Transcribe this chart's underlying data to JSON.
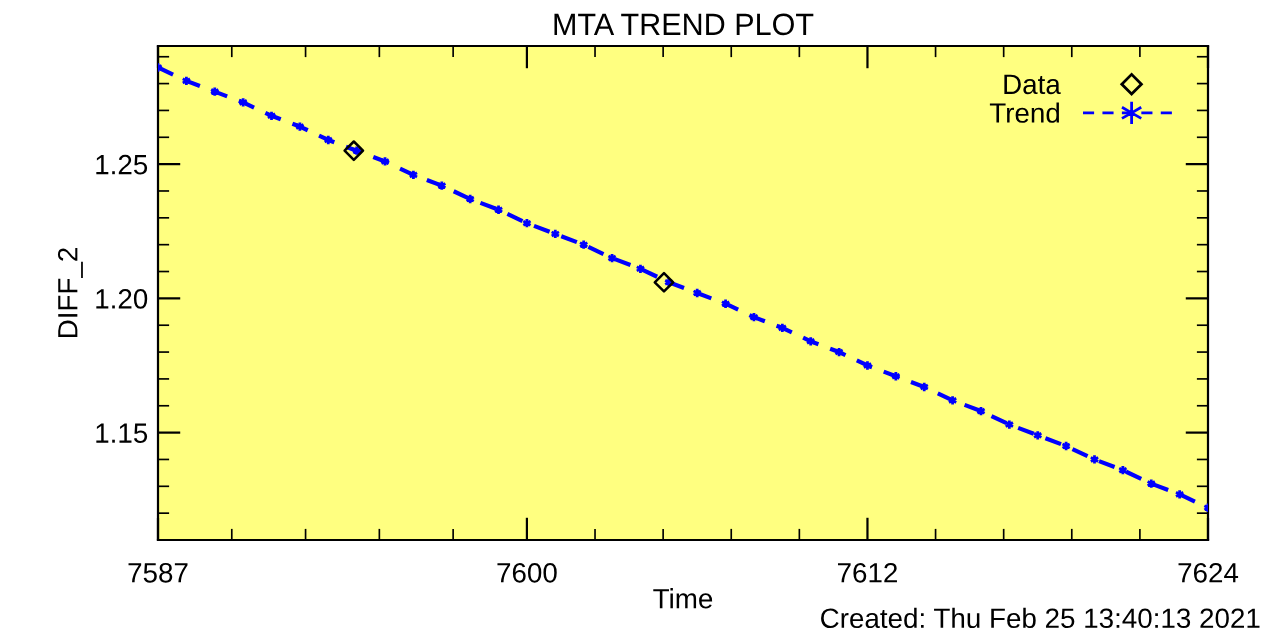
{
  "chart_data": {
    "type": "scatter",
    "title": "MTA TREND PLOT",
    "xlabel": "Time",
    "ylabel": "DIFF_2",
    "annotations": [
      "Created: Thu Feb 25 13:40:13 2021"
    ],
    "xlim": [
      7587,
      7624
    ],
    "xticks": [
      7587,
      7600,
      7612,
      7624
    ],
    "ylim": [
      1.11,
      1.294
    ],
    "yticks": [
      1.15,
      {
        "value": 1.2,
        "label": "1.20"
      },
      1.25
    ],
    "grid": false,
    "legend": "top right",
    "series": [
      {
        "name": "Data",
        "color": "#000000",
        "marker": "diamond",
        "x": [
          7593.9,
          7604.83
        ],
        "values": [
          1.255,
          1.206
        ]
      },
      {
        "name": "Trend",
        "type": "line",
        "color": "#0000ff",
        "marker": "cross",
        "line_style": "dashed",
        "x": [
          7587,
          7588,
          7589,
          7590,
          7591,
          7592,
          7593,
          7594,
          7595,
          7596,
          7597,
          7598,
          7599,
          7600,
          7601,
          7602,
          7603,
          7604,
          7605,
          7606,
          7607,
          7608,
          7609,
          7610,
          7611,
          7612,
          7613,
          7614,
          7615,
          7616,
          7617,
          7618,
          7619,
          7620,
          7621,
          7622,
          7623,
          7624
        ],
        "values": [
          1.286,
          1.281,
          1.277,
          1.273,
          1.268,
          1.264,
          1.259,
          1.255,
          1.251,
          1.246,
          1.242,
          1.237,
          1.233,
          1.228,
          1.224,
          1.22,
          1.215,
          1.211,
          1.206,
          1.202,
          1.198,
          1.193,
          1.189,
          1.184,
          1.18,
          1.175,
          1.171,
          1.167,
          1.162,
          1.158,
          1.153,
          1.149,
          1.145,
          1.14,
          1.136,
          1.131,
          1.127,
          1.122
        ]
      }
    ]
  }
}
